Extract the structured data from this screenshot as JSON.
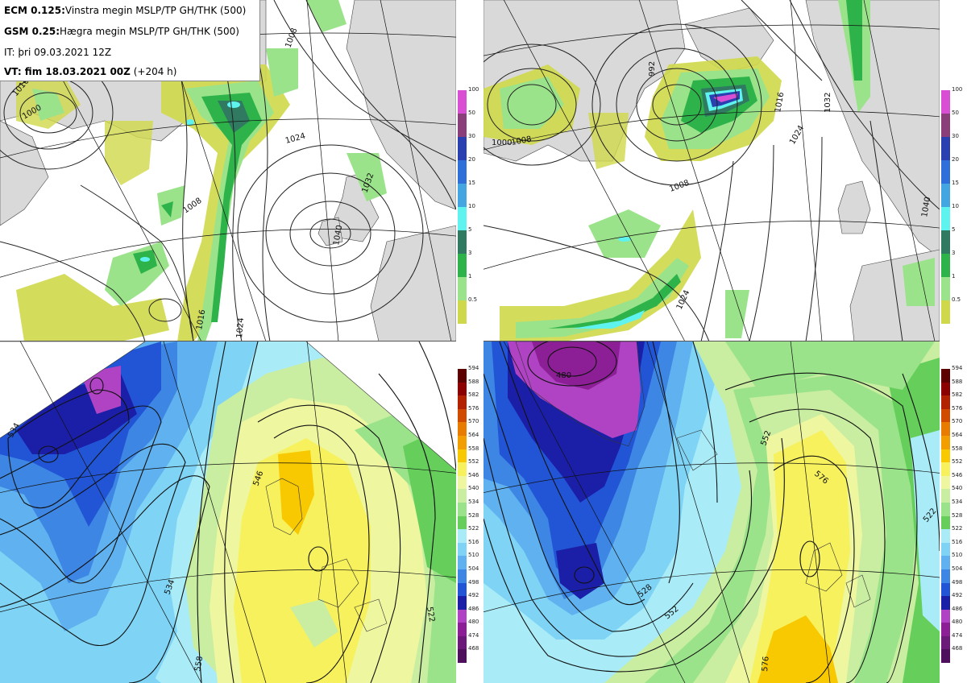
{
  "header": {
    "line1_bold": "ECM 0.125:",
    "line1_text": "Vinstra megin MSLP/TP GH/THK (500)",
    "line2_bold": "GSM 0.25:",
    "line2_text": "Hægra megin MSLP/TP GH/THK (500)",
    "line3_text": "IT: þri 09.03.2021 12Z",
    "line4_bold": "VT: fim 18.03.2021 00Z",
    "line4_text": "(+204 h)"
  },
  "precip_colorbar": {
    "labels": [
      "100",
      "50",
      "30",
      "20",
      "15",
      "10",
      "5",
      "3",
      "1",
      "0.5"
    ],
    "colors": [
      "#d84fd4",
      "#8a3f7a",
      "#2a3fb0",
      "#2f6fd9",
      "#43a6e0",
      "#5ff3f0",
      "#2f7a60",
      "#2eb34b",
      "#9be38a",
      "#cfd84a"
    ]
  },
  "thk_colorbar": {
    "labels": [
      "594",
      "588",
      "582",
      "576",
      "570",
      "564",
      "558",
      "552",
      "546",
      "540",
      "534",
      "528",
      "522",
      "516",
      "510",
      "504",
      "498",
      "492",
      "486",
      "480",
      "474",
      "468"
    ],
    "colors": [
      "#5c0000",
      "#8b0000",
      "#b22200",
      "#d04a00",
      "#e87c00",
      "#f39e00",
      "#f8c800",
      "#f6f15c",
      "#eef7a0",
      "#c9eea1",
      "#9be38a",
      "#66cf5c",
      "#a9ecf7",
      "#7fd4f5",
      "#5fb1ef",
      "#3d86e4",
      "#2255d6",
      "#1b1fa8",
      "#b043c4",
      "#8c1f96",
      "#6b1a7a",
      "#4e0f5c"
    ]
  },
  "maps": {
    "top_left": {
      "contour_labels": [
        "1000",
        "1008",
        "1008",
        "1016",
        "1024",
        "1024",
        "1032",
        "1040",
        "1016"
      ]
    },
    "top_right": {
      "contour_labels": [
        "1000",
        "992",
        "1008",
        "1016",
        "1024",
        "1032",
        "1040",
        "1024",
        "1008"
      ]
    },
    "bottom_left": {
      "contour_labels": [
        "534",
        "546",
        "558",
        "534",
        "522"
      ]
    },
    "bottom_right": {
      "contour_labels": [
        "480",
        "528",
        "552",
        "576",
        "552",
        "576",
        "522"
      ]
    }
  }
}
